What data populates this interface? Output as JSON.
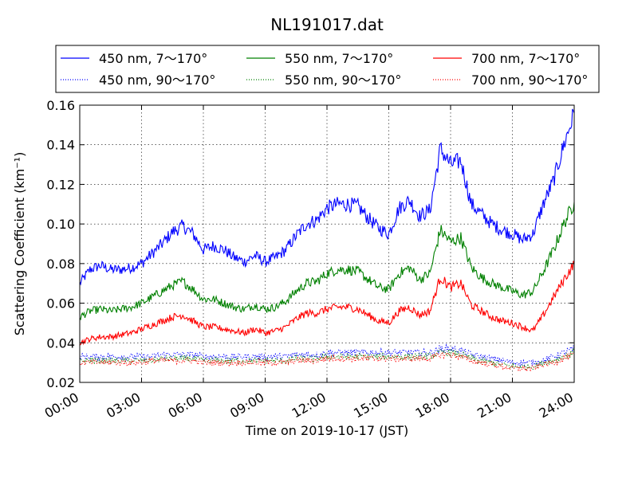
{
  "chart_data": {
    "type": "line",
    "title": "NL191017.dat",
    "xlabel": "Time on 2019-10-17 (JST)",
    "ylabel": "Scattering Coefficient (km⁻¹)",
    "x_tick_labels": [
      "00:00",
      "03:00",
      "06:00",
      "09:00",
      "12:00",
      "15:00",
      "18:00",
      "21:00",
      "24:00"
    ],
    "x_tick_hours": [
      0,
      3,
      6,
      9,
      12,
      15,
      18,
      21,
      24
    ],
    "xlim_hours": [
      0,
      24
    ],
    "ylim": [
      0.02,
      0.16
    ],
    "y_ticks": [
      0.02,
      0.04,
      0.06,
      0.08,
      0.1,
      0.12,
      0.14,
      0.16
    ],
    "y_tick_labels": [
      "0.02",
      "0.04",
      "0.06",
      "0.08",
      "0.10",
      "0.12",
      "0.14",
      "0.16"
    ],
    "grid": true,
    "legend_placement": "top, above plot, 3 columns",
    "x_hours": [
      0,
      0.5,
      1,
      1.5,
      2,
      2.5,
      3,
      3.5,
      4,
      4.5,
      5,
      5.5,
      6,
      6.5,
      7,
      7.5,
      8,
      8.5,
      9,
      9.5,
      10,
      10.5,
      11,
      11.5,
      12,
      12.5,
      13,
      13.5,
      14,
      14.5,
      15,
      15.5,
      16,
      16.5,
      17,
      17.5,
      18,
      18.5,
      19,
      19.5,
      20,
      20.5,
      21,
      21.5,
      22,
      22.5,
      23,
      23.5,
      24
    ],
    "series": [
      {
        "name": "450 nm, 7～170°",
        "color": "#0000ff",
        "style": "solid",
        "values": [
          0.07,
          0.077,
          0.079,
          0.077,
          0.077,
          0.078,
          0.08,
          0.085,
          0.09,
          0.096,
          0.099,
          0.095,
          0.087,
          0.089,
          0.087,
          0.083,
          0.081,
          0.084,
          0.081,
          0.083,
          0.087,
          0.094,
          0.1,
          0.102,
          0.108,
          0.11,
          0.11,
          0.109,
          0.103,
          0.098,
          0.095,
          0.108,
          0.112,
          0.104,
          0.107,
          0.138,
          0.13,
          0.132,
          0.11,
          0.105,
          0.1,
          0.097,
          0.095,
          0.092,
          0.095,
          0.11,
          0.122,
          0.14,
          0.156
        ]
      },
      {
        "name": "550 nm, 7～170°",
        "color": "#008000",
        "style": "solid",
        "values": [
          0.053,
          0.056,
          0.057,
          0.056,
          0.057,
          0.058,
          0.06,
          0.063,
          0.066,
          0.069,
          0.071,
          0.067,
          0.062,
          0.062,
          0.06,
          0.058,
          0.057,
          0.059,
          0.057,
          0.058,
          0.061,
          0.066,
          0.07,
          0.071,
          0.075,
          0.077,
          0.077,
          0.076,
          0.072,
          0.068,
          0.067,
          0.075,
          0.078,
          0.072,
          0.075,
          0.097,
          0.091,
          0.093,
          0.078,
          0.073,
          0.07,
          0.068,
          0.066,
          0.064,
          0.066,
          0.076,
          0.087,
          0.1,
          0.111
        ]
      },
      {
        "name": "700 nm, 7～170°",
        "color": "#ff0000",
        "style": "solid",
        "values": [
          0.04,
          0.042,
          0.043,
          0.043,
          0.044,
          0.045,
          0.047,
          0.049,
          0.051,
          0.053,
          0.054,
          0.051,
          0.048,
          0.048,
          0.047,
          0.046,
          0.045,
          0.047,
          0.045,
          0.046,
          0.048,
          0.052,
          0.055,
          0.055,
          0.057,
          0.058,
          0.058,
          0.057,
          0.054,
          0.051,
          0.05,
          0.056,
          0.058,
          0.054,
          0.056,
          0.073,
          0.068,
          0.07,
          0.059,
          0.056,
          0.053,
          0.051,
          0.05,
          0.048,
          0.046,
          0.054,
          0.063,
          0.072,
          0.08
        ]
      },
      {
        "name": "450 nm, 90～170°",
        "color": "#0000ff",
        "style": "dotted",
        "values": [
          0.033,
          0.033,
          0.033,
          0.033,
          0.033,
          0.033,
          0.033,
          0.033,
          0.034,
          0.034,
          0.034,
          0.034,
          0.033,
          0.033,
          0.033,
          0.033,
          0.033,
          0.033,
          0.033,
          0.033,
          0.033,
          0.034,
          0.034,
          0.034,
          0.035,
          0.035,
          0.035,
          0.035,
          0.035,
          0.035,
          0.035,
          0.035,
          0.035,
          0.035,
          0.035,
          0.037,
          0.037,
          0.036,
          0.034,
          0.033,
          0.032,
          0.031,
          0.03,
          0.03,
          0.03,
          0.031,
          0.033,
          0.035,
          0.037
        ]
      },
      {
        "name": "550 nm, 90～170°",
        "color": "#008000",
        "style": "dotted",
        "values": [
          0.031,
          0.031,
          0.031,
          0.031,
          0.031,
          0.031,
          0.031,
          0.031,
          0.032,
          0.032,
          0.032,
          0.032,
          0.031,
          0.031,
          0.031,
          0.031,
          0.031,
          0.031,
          0.031,
          0.031,
          0.031,
          0.032,
          0.032,
          0.032,
          0.033,
          0.033,
          0.033,
          0.033,
          0.033,
          0.033,
          0.033,
          0.033,
          0.033,
          0.033,
          0.033,
          0.035,
          0.035,
          0.034,
          0.032,
          0.031,
          0.03,
          0.029,
          0.028,
          0.028,
          0.028,
          0.03,
          0.031,
          0.033,
          0.035
        ]
      },
      {
        "name": "700 nm, 90～170°",
        "color": "#ff0000",
        "style": "dotted",
        "values": [
          0.03,
          0.03,
          0.03,
          0.03,
          0.03,
          0.03,
          0.03,
          0.031,
          0.031,
          0.031,
          0.031,
          0.031,
          0.03,
          0.03,
          0.03,
          0.03,
          0.03,
          0.03,
          0.03,
          0.03,
          0.03,
          0.031,
          0.031,
          0.031,
          0.032,
          0.032,
          0.032,
          0.032,
          0.032,
          0.032,
          0.032,
          0.032,
          0.032,
          0.032,
          0.032,
          0.034,
          0.034,
          0.033,
          0.031,
          0.03,
          0.029,
          0.028,
          0.027,
          0.027,
          0.027,
          0.029,
          0.03,
          0.032,
          0.034
        ]
      }
    ]
  }
}
